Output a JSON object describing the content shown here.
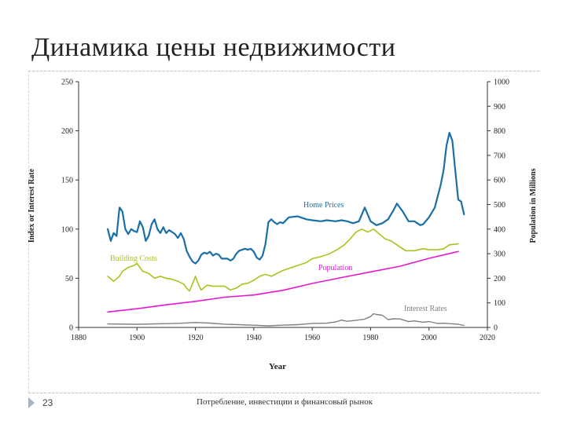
{
  "slide": {
    "title": "Динамика цены недвижимости",
    "page_number": "23",
    "footer": "Потребление, инвестиции и финансовый рынок"
  },
  "chart_data": {
    "type": "line",
    "title": "",
    "xlabel": "Year",
    "ylabel_left": "Index or Interest Rate",
    "ylabel_right": "Population in Millions",
    "xlim": [
      1880,
      2020
    ],
    "ylim_left": [
      0,
      250
    ],
    "ylim_right": [
      0,
      1000
    ],
    "x_ticks": [
      1880,
      1900,
      1920,
      1940,
      1960,
      1980,
      2000,
      2020
    ],
    "y_ticks_left": [
      0,
      50,
      100,
      150,
      200,
      250
    ],
    "y_ticks_right": [
      0,
      100,
      200,
      300,
      400,
      500,
      600,
      700,
      800,
      900,
      1000
    ],
    "grid": false,
    "colors": {
      "home_prices": "#1a6fa8",
      "building_costs": "#a6c51f",
      "population": "#e619d0",
      "interest_rates": "#808080"
    },
    "series": [
      {
        "name": "Home Prices",
        "axis": "left",
        "x": [
          1890,
          1891,
          1892,
          1893,
          1894,
          1895,
          1896,
          1897,
          1898,
          1899,
          1900,
          1901,
          1902,
          1903,
          1904,
          1905,
          1906,
          1907,
          1908,
          1909,
          1910,
          1911,
          1912,
          1913,
          1914,
          1915,
          1916,
          1917,
          1918,
          1919,
          1920,
          1921,
          1922,
          1923,
          1924,
          1925,
          1926,
          1927,
          1928,
          1929,
          1930,
          1931,
          1932,
          1933,
          1934,
          1935,
          1936,
          1937,
          1938,
          1939,
          1940,
          1941,
          1942,
          1943,
          1944,
          1945,
          1946,
          1947,
          1948,
          1949,
          1950,
          1952,
          1955,
          1958,
          1960,
          1963,
          1965,
          1968,
          1970,
          1972,
          1974,
          1976,
          1978,
          1979,
          1980,
          1982,
          1984,
          1986,
          1988,
          1989,
          1991,
          1993,
          1995,
          1997,
          1998,
          2000,
          2002,
          2004,
          2005,
          2006,
          2007,
          2008,
          2009,
          2010,
          2011,
          2012
        ],
        "values": [
          100,
          88,
          96,
          93,
          122,
          118,
          100,
          95,
          100,
          98,
          97,
          108,
          102,
          88,
          93,
          105,
          110,
          100,
          96,
          102,
          96,
          99,
          97,
          95,
          91,
          96,
          90,
          78,
          72,
          67,
          65,
          68,
          74,
          76,
          75,
          77,
          73,
          75,
          74,
          70,
          70,
          70,
          68,
          70,
          75,
          78,
          79,
          80,
          79,
          80,
          77,
          71,
          69,
          73,
          85,
          107,
          110,
          107,
          105,
          107,
          106,
          112,
          113,
          110,
          109,
          108,
          109,
          108,
          109,
          108,
          106,
          108,
          122,
          115,
          108,
          104,
          106,
          110,
          120,
          126,
          118,
          108,
          108,
          104,
          105,
          112,
          122,
          145,
          160,
          185,
          198,
          190,
          160,
          130,
          128,
          115
        ]
      },
      {
        "name": "Building Costs",
        "axis": "left",
        "x": [
          1890,
          1892,
          1894,
          1895,
          1897,
          1899,
          1900,
          1902,
          1904,
          1906,
          1908,
          1910,
          1912,
          1914,
          1916,
          1917,
          1918,
          1920,
          1921,
          1922,
          1924,
          1926,
          1928,
          1930,
          1932,
          1934,
          1936,
          1938,
          1940,
          1942,
          1944,
          1946,
          1948,
          1950,
          1952,
          1955,
          1958,
          1960,
          1963,
          1966,
          1969,
          1971,
          1973,
          1975,
          1977,
          1979,
          1981,
          1983,
          1985,
          1987,
          1989,
          1992,
          1995,
          1998,
          2000,
          2003,
          2005,
          2007,
          2010
        ],
        "values": [
          52,
          47,
          52,
          57,
          61,
          63,
          65,
          57,
          55,
          50,
          52,
          50,
          49,
          47,
          44,
          40,
          37,
          52,
          44,
          38,
          43,
          42,
          42,
          42,
          38,
          40,
          44,
          45,
          48,
          52,
          54,
          52,
          55,
          58,
          60,
          63,
          66,
          70,
          72,
          75,
          80,
          84,
          90,
          97,
          100,
          97,
          100,
          95,
          90,
          88,
          84,
          78,
          78,
          80,
          79,
          79,
          80,
          84,
          85
        ]
      },
      {
        "name": "Population",
        "axis": "right",
        "x": [
          1890,
          1900,
          1910,
          1920,
          1930,
          1940,
          1950,
          1960,
          1970,
          1980,
          1990,
          2000,
          2010
        ],
        "values": [
          63,
          76,
          92,
          106,
          123,
          132,
          151,
          179,
          203,
          226,
          249,
          281,
          309
        ]
      },
      {
        "name": "Interest Rates",
        "axis": "left",
        "x": [
          1890,
          1900,
          1910,
          1915,
          1920,
          1925,
          1930,
          1935,
          1940,
          1945,
          1950,
          1955,
          1960,
          1965,
          1968,
          1970,
          1972,
          1975,
          1978,
          1980,
          1981,
          1982,
          1984,
          1986,
          1988,
          1990,
          1993,
          1995,
          1998,
          2000,
          2003,
          2005,
          2008,
          2010,
          2012
        ],
        "values": [
          3.5,
          3.2,
          3.8,
          4.2,
          5,
          4.4,
          3.3,
          2.8,
          2.2,
          1.6,
          2.3,
          2.8,
          4.1,
          4.3,
          5.6,
          7.4,
          6.2,
          7.3,
          8.5,
          11,
          13.9,
          13.2,
          12.4,
          8,
          8.8,
          8.6,
          5.9,
          6.6,
          5.3,
          6,
          4,
          4.3,
          3.7,
          3.2,
          2
        ]
      }
    ],
    "series_labels": {
      "home_prices": "Home Prices",
      "building_costs": "Building Costs",
      "population": "Population",
      "interest_rates": "Interest Rates"
    }
  }
}
